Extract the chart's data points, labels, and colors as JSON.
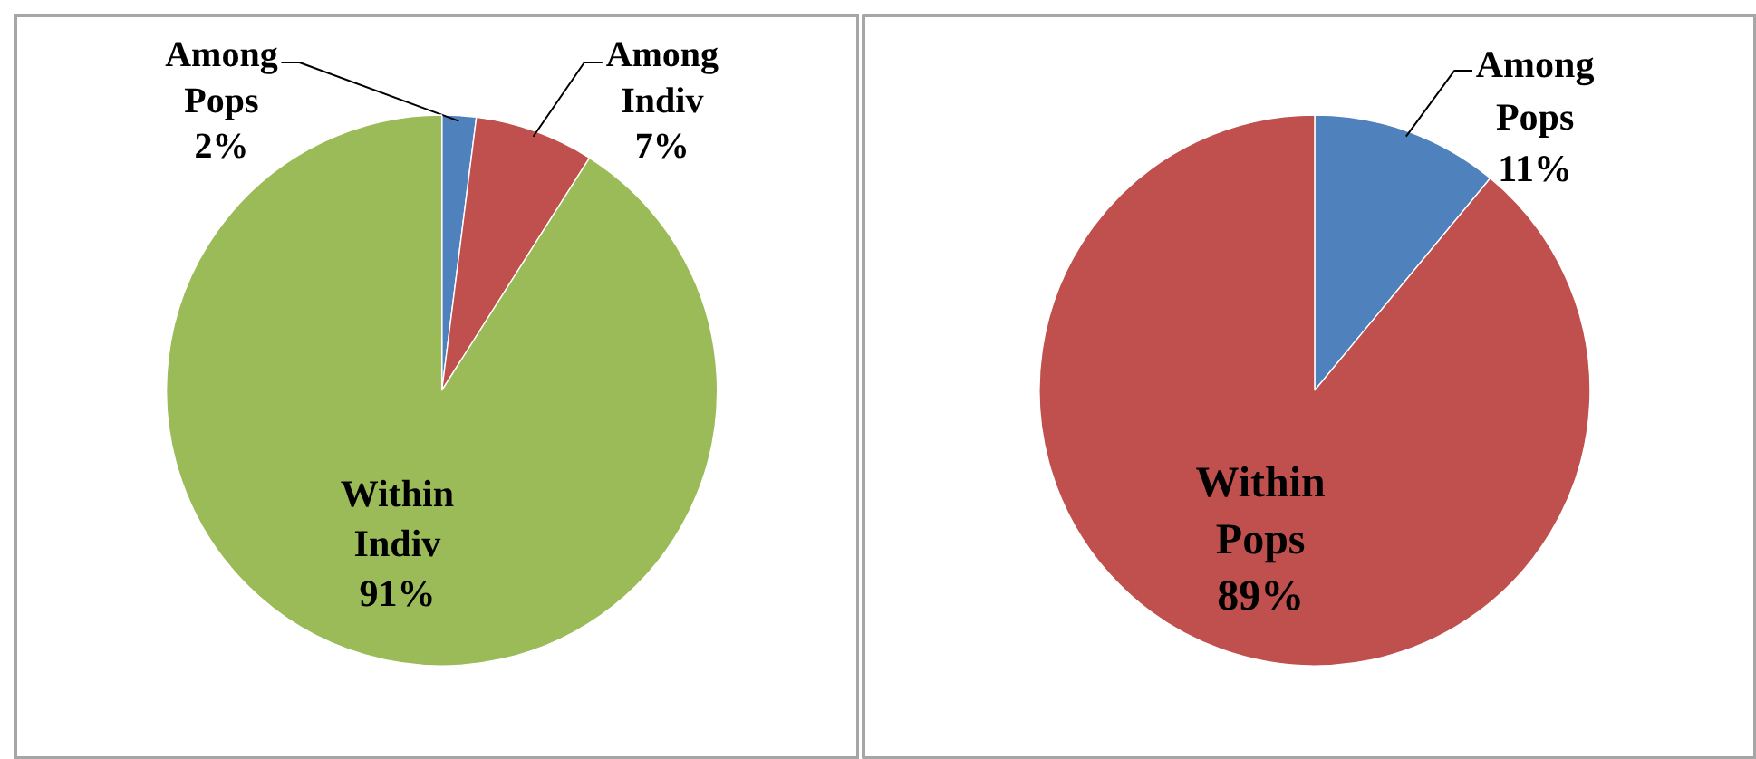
{
  "chart_data": [
    {
      "type": "pie",
      "categories": [
        "Among Pops",
        "Among Indiv",
        "Within Indiv"
      ],
      "values": [
        2,
        7,
        91
      ],
      "colors": [
        "#4f81bd",
        "#c0504d",
        "#9bbb59"
      ],
      "value_labels": [
        "2%",
        "7%",
        "91%"
      ]
    },
    {
      "type": "pie",
      "categories": [
        "Among Pops",
        "Within Pops"
      ],
      "values": [
        11,
        89
      ],
      "colors": [
        "#4f81bd",
        "#c0504d"
      ],
      "value_labels": [
        "11%",
        "89%"
      ]
    }
  ]
}
